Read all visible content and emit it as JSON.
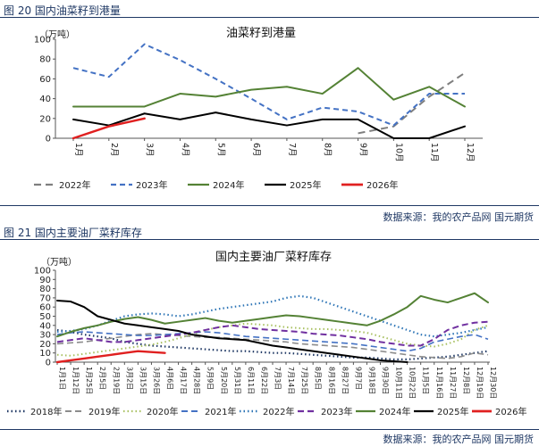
{
  "figure20": {
    "label": "图 20 国内油菜籽到港量",
    "source": "数据来源：我的农产品网 国元期货"
  },
  "figure21": {
    "label": "图 21 国内主要油厂菜籽库存",
    "source": "数据来源：我的农产品网 国元期货"
  },
  "chart_data": [
    {
      "type": "line",
      "title": "油菜籽到港量",
      "ylabel": "（万吨）",
      "ylim": [
        0,
        100
      ],
      "yticks": [
        0,
        20,
        40,
        60,
        80,
        100
      ],
      "categories": [
        "1月",
        "2月",
        "3月",
        "4月",
        "5月",
        "6月",
        "7月",
        "8月",
        "9月",
        "10月",
        "11月",
        "12月"
      ],
      "legend_position": "bottom",
      "series": [
        {
          "name": "2022年",
          "color": "#7f7f7f",
          "dash": "8,5",
          "width": 2,
          "values": [
            null,
            null,
            null,
            null,
            null,
            null,
            null,
            null,
            5,
            12,
            42,
            66
          ]
        },
        {
          "name": "2023年",
          "color": "#4472c4",
          "dash": "6,4",
          "width": 2,
          "values": [
            71,
            62,
            95,
            79,
            60,
            40,
            19,
            31,
            27,
            13,
            45,
            45
          ]
        },
        {
          "name": "2024年",
          "color": "#548235",
          "dash": "",
          "width": 2,
          "values": [
            32,
            32,
            32,
            45,
            42,
            49,
            52,
            45,
            71,
            39,
            52,
            32
          ]
        },
        {
          "name": "2025年",
          "color": "#000000",
          "dash": "",
          "width": 2,
          "values": [
            19,
            13,
            25,
            19,
            26,
            19,
            13,
            19,
            19,
            0,
            0,
            12
          ]
        },
        {
          "name": "2026年",
          "color": "#e02020",
          "dash": "",
          "width": 2.5,
          "values": [
            0,
            12,
            20,
            null,
            null,
            null,
            null,
            null,
            null,
            null,
            null,
            null
          ]
        }
      ]
    },
    {
      "type": "line",
      "title": "国内主要油厂菜籽库存",
      "ylabel": "（万吨）",
      "ylim": [
        0,
        100
      ],
      "yticks": [
        0,
        10,
        20,
        30,
        40,
        50,
        60,
        70,
        80,
        90,
        100
      ],
      "categories": [
        "1月1日",
        "1月12日",
        "1月25日",
        "2月5日",
        "2月19日",
        "3月2日",
        "3月15日",
        "3月26日",
        "4月6日",
        "4月17日",
        "4月28日",
        "5月9日",
        "5月20日",
        "5月31日",
        "6月11日",
        "6月22日",
        "7月3日",
        "7月14日",
        "7月25日",
        "8月5日",
        "8月16日",
        "8月27日",
        "9月7日",
        "9月18日",
        "9月30日",
        "10月11日",
        "10月22日",
        "11月5日",
        "11月16日",
        "11月27日",
        "12月8日",
        "12月19日",
        "12月30日"
      ],
      "legend_position": "bottom",
      "series": [
        {
          "name": "2018年",
          "color": "#1f3864",
          "dash": "1.5,3",
          "width": 2.2,
          "values": [
            35,
            33,
            30,
            28,
            26,
            22,
            20,
            18,
            17,
            16,
            15,
            14,
            13,
            12,
            12,
            11,
            10,
            10,
            9,
            8,
            7,
            6,
            5,
            5,
            4,
            3,
            3,
            4,
            5,
            6,
            8,
            10,
            12
          ]
        },
        {
          "name": "2019年",
          "color": "#8c8c8c",
          "dash": "7,4",
          "width": 1.6,
          "values": [
            20,
            21,
            22,
            24,
            26,
            28,
            30,
            31,
            30,
            29,
            28,
            27,
            27,
            26,
            25,
            24,
            23,
            22,
            20,
            19,
            18,
            17,
            16,
            14,
            12,
            10,
            8,
            6,
            5,
            4,
            6,
            10,
            8
          ]
        },
        {
          "name": "2020年",
          "color": "#a8c060",
          "dash": "1.5,3",
          "width": 2,
          "values": [
            8,
            7,
            9,
            11,
            13,
            15,
            17,
            19,
            22,
            26,
            30,
            35,
            38,
            40,
            42,
            41,
            40,
            38,
            37,
            36,
            36,
            35,
            34,
            32,
            28,
            24,
            20,
            18,
            17,
            20,
            25,
            35,
            40
          ]
        },
        {
          "name": "2021年",
          "color": "#4472c4",
          "dash": "7,4",
          "width": 1.6,
          "values": [
            30,
            32,
            33,
            32,
            31,
            30,
            29,
            29,
            30,
            31,
            32,
            33,
            32,
            30,
            28,
            27,
            26,
            25,
            24,
            23,
            22,
            21,
            20,
            18,
            16,
            14,
            12,
            15,
            22,
            25,
            28,
            30,
            25
          ]
        },
        {
          "name": "2022年",
          "color": "#2e75b6",
          "dash": "1.5,3",
          "width": 2.2,
          "values": [
            33,
            34,
            36,
            40,
            45,
            50,
            52,
            53,
            52,
            50,
            52,
            55,
            58,
            60,
            62,
            64,
            66,
            70,
            72,
            70,
            65,
            60,
            55,
            50,
            45,
            40,
            35,
            30,
            28,
            30,
            32,
            35,
            38
          ]
        },
        {
          "name": "2023年",
          "color": "#7030a0",
          "dash": "7,4",
          "width": 2,
          "values": [
            22,
            24,
            26,
            24,
            22,
            22,
            24,
            26,
            28,
            30,
            32,
            35,
            38,
            40,
            38,
            36,
            35,
            34,
            33,
            31,
            30,
            29,
            27,
            25,
            22,
            20,
            18,
            18,
            25,
            35,
            40,
            43,
            44
          ]
        },
        {
          "name": "2024年",
          "color": "#548235",
          "dash": "",
          "width": 2,
          "values": [
            28,
            33,
            37,
            40,
            44,
            47,
            49,
            46,
            42,
            44,
            46,
            48,
            45,
            43,
            45,
            47,
            49,
            51,
            50,
            48,
            46,
            44,
            42,
            40,
            45,
            52,
            60,
            72,
            68,
            65,
            70,
            75,
            65
          ]
        },
        {
          "name": "2025年",
          "color": "#000000",
          "dash": "",
          "width": 2,
          "values": [
            67,
            66,
            60,
            50,
            46,
            42,
            40,
            38,
            36,
            34,
            30,
            28,
            26,
            25,
            24,
            21,
            18,
            16,
            14,
            12,
            10,
            8,
            6,
            4,
            2,
            1,
            0,
            null,
            null,
            null,
            null,
            null,
            null
          ]
        },
        {
          "name": "2026年",
          "color": "#e02020",
          "dash": "",
          "width": 2.4,
          "values": [
            0,
            2,
            4,
            6,
            8,
            10,
            12,
            11,
            10,
            null,
            null,
            null,
            null,
            null,
            null,
            null,
            null,
            null,
            null,
            null,
            null,
            null,
            null,
            null,
            null,
            null,
            null,
            null,
            null,
            null,
            null,
            null,
            null
          ]
        }
      ]
    }
  ]
}
